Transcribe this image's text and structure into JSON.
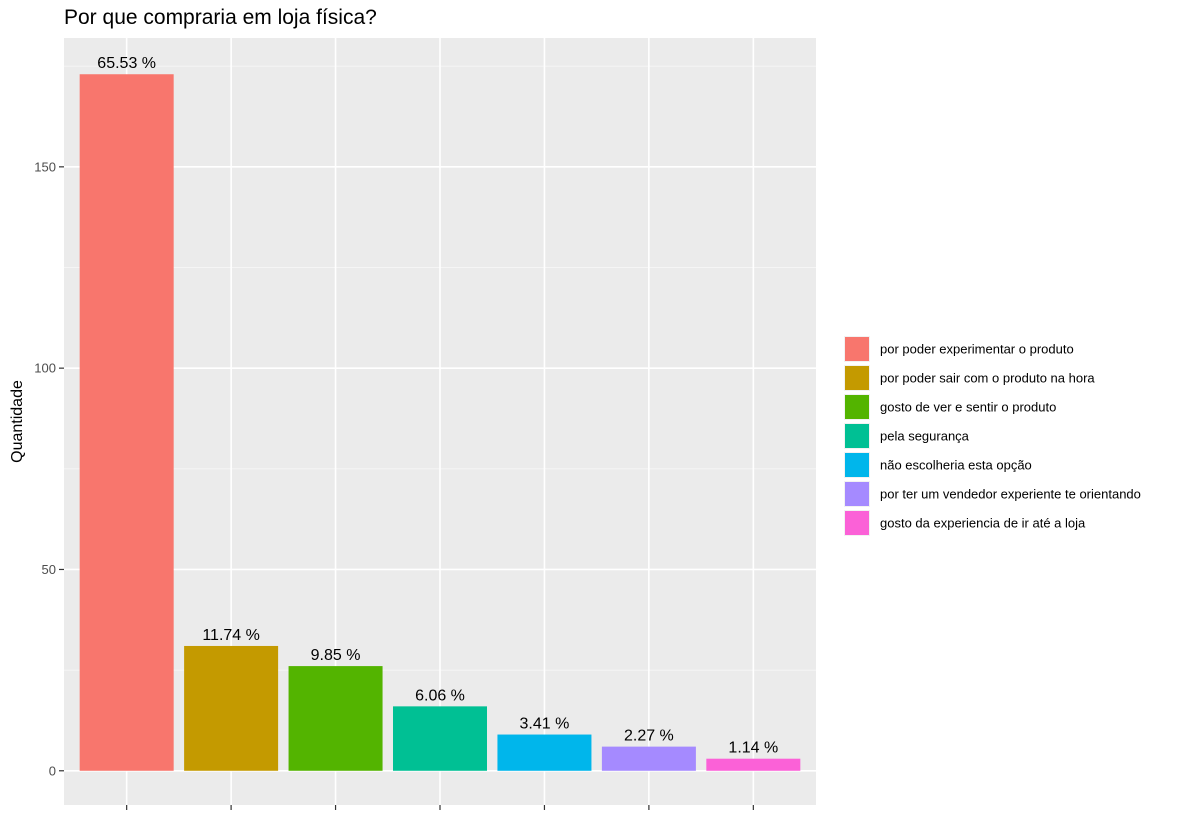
{
  "chart_data": {
    "type": "bar",
    "title": "Por que compraria em loja física?",
    "xlabel": "",
    "ylabel": "Quantidade",
    "ylim": [
      -8.5,
      182
    ],
    "yticks": [
      0,
      50,
      100,
      150
    ],
    "grid": true,
    "legend_position": "right",
    "categories": [
      "por poder experimentar o produto",
      "por poder sair com o produto na hora",
      "gosto de ver e sentir o produto",
      "pela segurança",
      "não escolheria esta opção",
      "por ter um vendedor experiente te orientando",
      "gosto da experiencia de ir até a loja"
    ],
    "values": [
      173,
      31,
      26,
      16,
      9,
      6,
      3
    ],
    "labels": [
      "65.53 %",
      "11.74 %",
      "9.85 %",
      "6.06 %",
      "3.41 %",
      "2.27 %",
      "1.14 %"
    ],
    "colors": [
      "#F8766D",
      "#C49A00",
      "#53B400",
      "#00C094",
      "#00B6EB",
      "#A58AFF",
      "#FB61D7"
    ]
  }
}
